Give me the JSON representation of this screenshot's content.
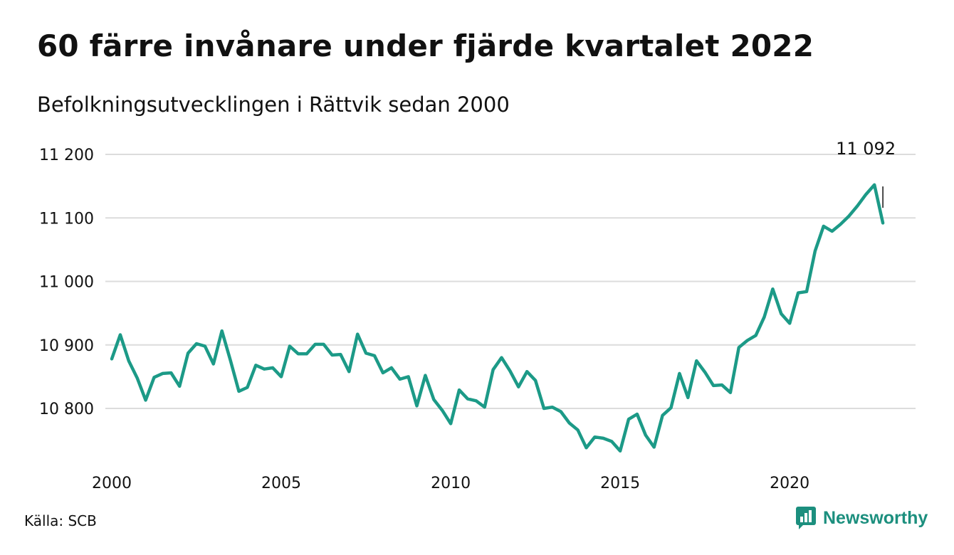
{
  "title": "60 färre invånare under fjärde kvartalet 2022",
  "subtitle": "Befolkningsutvecklingen i Rättvik sedan 2000",
  "source": "Källa: SCB",
  "brand": {
    "name": "Newsworthy",
    "icon": "bar-chart-logo-icon",
    "color": "#1c8f7e"
  },
  "chart_data": {
    "type": "line",
    "title": "60 färre invånare under fjärde kvartalet 2022",
    "subtitle": "Befolkningsutvecklingen i Rättvik sedan 2000",
    "xlabel": "",
    "ylabel": "",
    "xlim": [
      2000.0,
      2023.0
    ],
    "ylim": [
      10720,
      11210
    ],
    "y_ticks": [
      10800,
      10900,
      11000,
      11100,
      11200
    ],
    "y_tick_labels": [
      "10 800",
      "10 900",
      "11 000",
      "11 100",
      "11 200"
    ],
    "x_ticks": [
      2000,
      2005,
      2010,
      2015,
      2020
    ],
    "x_tick_labels": [
      "2000",
      "2005",
      "2010",
      "2015",
      "2020"
    ],
    "grid": true,
    "line_color": "#1c9a87",
    "series": [
      {
        "x": [
          2000.0,
          2000.25,
          2000.5,
          2000.75,
          2001.0,
          2001.25,
          2001.5,
          2001.75,
          2002.0,
          2002.25,
          2002.5,
          2002.75,
          2003.0,
          2003.25,
          2003.5,
          2003.75,
          2004.0,
          2004.25,
          2004.5,
          2004.75,
          2005.0,
          2005.25,
          2005.5,
          2005.75,
          2006.0,
          2006.25,
          2006.5,
          2006.75,
          2007.0,
          2007.25,
          2007.5,
          2007.75,
          2008.0,
          2008.25,
          2008.5,
          2008.75,
          2009.0,
          2009.25,
          2009.5,
          2009.75,
          2010.0,
          2010.25,
          2010.5,
          2010.75,
          2011.0,
          2011.25,
          2011.5,
          2011.75,
          2012.0,
          2012.25,
          2012.5,
          2012.75,
          2013.0,
          2013.25,
          2013.5,
          2013.75,
          2014.0,
          2014.25,
          2014.5,
          2014.75,
          2015.0,
          2015.25,
          2015.5,
          2015.75,
          2016.0,
          2016.25,
          2016.5,
          2016.75,
          2017.0,
          2017.25,
          2017.5,
          2017.75,
          2018.0,
          2018.25,
          2018.5,
          2018.75,
          2019.0,
          2019.25,
          2019.5,
          2019.75,
          2020.0,
          2020.25,
          2020.5,
          2020.75,
          2021.0,
          2021.25,
          2021.5,
          2021.75,
          2022.0,
          2022.25,
          2022.5,
          2022.75
        ],
        "values": [
          10878,
          10916,
          10875,
          10848,
          10813,
          10849,
          10855,
          10856,
          10835,
          10887,
          10902,
          10898,
          10870,
          10922,
          10876,
          10827,
          10833,
          10868,
          10862,
          10864,
          10850,
          10898,
          10886,
          10886,
          10901,
          10901,
          10884,
          10885,
          10858,
          10917,
          10887,
          10883,
          10856,
          10864,
          10846,
          10850,
          10804,
          10852,
          10814,
          10797,
          10776,
          10829,
          10815,
          10812,
          10802,
          10861,
          10880,
          10859,
          10834,
          10858,
          10844,
          10800,
          10802,
          10795,
          10777,
          10766,
          10738,
          10755,
          10753,
          10748,
          10733,
          10783,
          10791,
          10758,
          10739,
          10789,
          10801,
          10855,
          10817,
          10875,
          10857,
          10836,
          10837,
          10825,
          10896,
          10907,
          10915,
          10944,
          10988,
          10949,
          10934,
          10982,
          10984,
          11048,
          11087,
          11079,
          11090,
          11103,
          11119,
          11137,
          11152,
          11092
        ]
      }
    ],
    "annotations": [
      {
        "text": "11 092",
        "x": 2022.75,
        "y": 11092
      }
    ]
  }
}
